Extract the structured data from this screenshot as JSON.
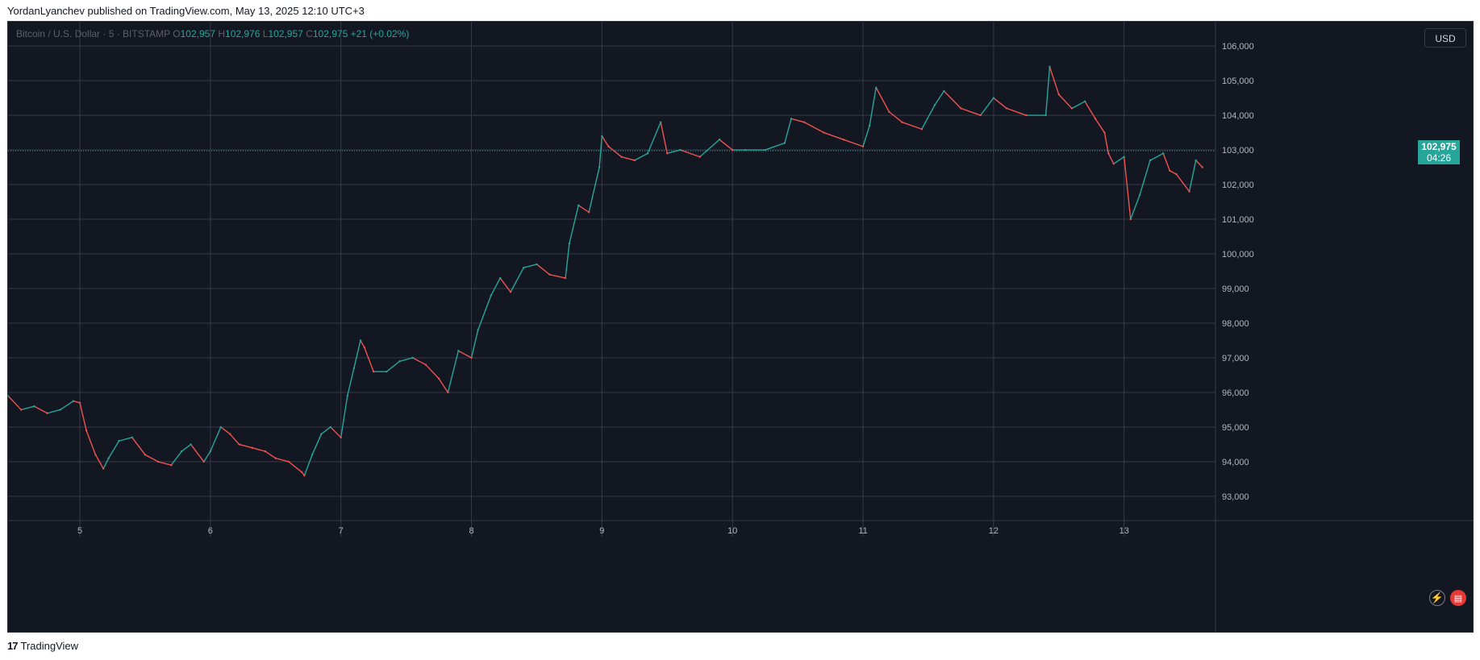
{
  "header": {
    "publish_text": "YordanLyanchev published on TradingView.com, May 13, 2025 12:10 UTC+3"
  },
  "legend": {
    "symbol": "Bitcoin / U.S. Dollar · 5 · BITSTAMP",
    "o_label": "O",
    "o_value": "102,957",
    "h_label": "H",
    "h_value": "102,976",
    "l_label": "L",
    "l_value": "102,957",
    "c_label": "C",
    "c_value": "102,975",
    "change": "+21 (+0.02%)"
  },
  "currency_button": {
    "label": "USD"
  },
  "last_price_tag": {
    "price": "102,975",
    "countdown": "04:26"
  },
  "footer": {
    "logo_glyph": "17",
    "brand": "TradingView"
  },
  "icons": [
    "flash-icon",
    "us-flag-icon"
  ],
  "colors": {
    "background": "#131722",
    "grid": "#363a45",
    "up": "#26a69a",
    "down": "#ef5350",
    "text": "#b2b5be"
  },
  "chart_data": {
    "type": "line",
    "title": "Bitcoin / U.S. Dollar · 5 · BITSTAMP",
    "interval": "5",
    "currency": "USD",
    "ylim": [
      92300,
      106700
    ],
    "y_ticks": [
      93000,
      94000,
      95000,
      96000,
      97000,
      98000,
      99000,
      100000,
      101000,
      102000,
      103000,
      104000,
      105000,
      106000
    ],
    "y_tick_labels": [
      "93,000",
      "94,000",
      "95,000",
      "96,000",
      "97,000",
      "98,000",
      "99,000",
      "100,000",
      "101,000",
      "102,000",
      "103,000",
      "104,000",
      "105,000",
      "106,000"
    ],
    "x_ticks": [
      5,
      6,
      7,
      8,
      9,
      10,
      11,
      12,
      13
    ],
    "x_tick_labels": [
      "5",
      "6",
      "7",
      "8",
      "9",
      "10",
      "11",
      "12",
      "13"
    ],
    "xlim": [
      4.45,
      13.7
    ],
    "last_price": 102975,
    "grid": true,
    "series": [
      {
        "x": [
          4.45,
          4.55,
          4.65,
          4.75,
          4.85,
          4.95,
          5.0,
          5.05,
          5.12,
          5.18,
          5.22,
          5.3,
          5.4,
          5.5,
          5.6,
          5.7,
          5.78,
          5.85,
          5.95,
          6.0,
          6.08,
          6.15,
          6.22,
          6.32,
          6.42,
          6.5,
          6.6,
          6.7,
          6.72,
          6.78,
          6.85,
          6.92,
          7.0,
          7.05,
          7.1,
          7.15,
          7.18,
          7.25,
          7.35,
          7.45,
          7.55,
          7.65,
          7.75,
          7.82,
          7.9,
          8.0,
          8.05,
          8.15,
          8.22,
          8.3,
          8.4,
          8.5,
          8.6,
          8.72,
          8.75,
          8.82,
          8.9,
          8.98,
          9.0,
          9.05,
          9.15,
          9.25,
          9.35,
          9.45,
          9.5,
          9.6,
          9.75,
          9.9,
          10.0,
          10.1,
          10.25,
          10.4,
          10.45,
          10.55,
          10.7,
          10.85,
          11.0,
          11.05,
          11.1,
          11.2,
          11.3,
          11.45,
          11.55,
          11.62,
          11.75,
          11.9,
          12.0,
          12.1,
          12.25,
          12.4,
          12.43,
          12.5,
          12.6,
          12.7,
          12.78,
          12.85,
          12.88,
          12.92,
          13.0,
          13.05,
          13.12,
          13.2,
          13.3,
          13.35,
          13.4,
          13.5,
          13.55,
          13.6
        ],
        "y": [
          95900,
          95500,
          95600,
          95400,
          95500,
          95750,
          95700,
          94900,
          94200,
          93800,
          94100,
          94600,
          94700,
          94200,
          94000,
          93900,
          94300,
          94500,
          94000,
          94300,
          95000,
          94800,
          94500,
          94400,
          94300,
          94100,
          94000,
          93700,
          93600,
          94200,
          94800,
          95000,
          94700,
          95900,
          96700,
          97500,
          97300,
          96600,
          96600,
          96900,
          97000,
          96800,
          96400,
          96000,
          97200,
          97000,
          97800,
          98800,
          99300,
          98900,
          99600,
          99700,
          99400,
          99300,
          100300,
          101400,
          101200,
          102500,
          103400,
          103100,
          102800,
          102700,
          102900,
          103800,
          102900,
          103000,
          102800,
          103300,
          103000,
          103000,
          103000,
          103200,
          103900,
          103800,
          103500,
          103300,
          103100,
          103700,
          104800,
          104100,
          103800,
          103600,
          104300,
          104700,
          104200,
          104000,
          104500,
          104200,
          104000,
          104000,
          105400,
          104600,
          104200,
          104400,
          103900,
          103500,
          102900,
          102600,
          102800,
          101000,
          101700,
          102700,
          102900,
          102400,
          102300,
          101800,
          102700,
          102500
        ]
      }
    ]
  }
}
